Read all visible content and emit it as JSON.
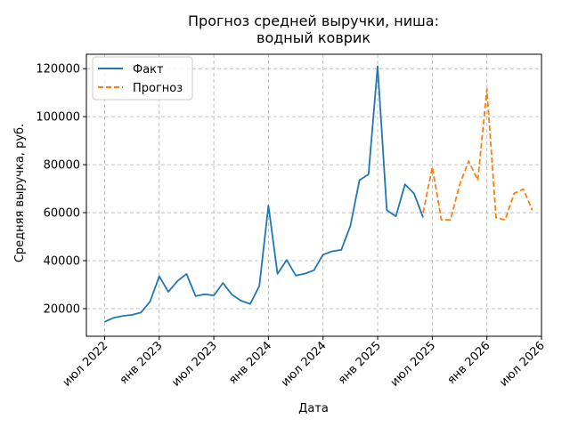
{
  "chart_data": {
    "type": "line",
    "title": "Прогноз средней выручки, ниша:\nводный коврик",
    "xlabel": "Дата",
    "ylabel": "Средняя выручка, руб.",
    "x_tick_labels": [
      "июл 2022",
      "янв 2023",
      "июл 2023",
      "янв 2024",
      "июл 2024",
      "янв 2025",
      "июл 2025",
      "янв 2026",
      "июл 2026"
    ],
    "x_tick_dates": [
      "2022-07",
      "2023-01",
      "2023-07",
      "2024-01",
      "2024-07",
      "2025-01",
      "2025-07",
      "2026-01",
      "2026-07"
    ],
    "xlim": [
      "2022-05",
      "2026-07"
    ],
    "y_ticks": [
      20000,
      40000,
      60000,
      80000,
      100000,
      120000
    ],
    "ylim": [
      8500,
      126000
    ],
    "grid": true,
    "legend_position": "top-left",
    "series": [
      {
        "name": "Факт",
        "style": "solid",
        "color": "#1f77b4",
        "x": [
          "2022-07",
          "2022-08",
          "2022-09",
          "2022-10",
          "2022-11",
          "2022-12",
          "2023-01",
          "2023-02",
          "2023-03",
          "2023-04",
          "2023-05",
          "2023-06",
          "2023-07",
          "2023-08",
          "2023-09",
          "2023-10",
          "2023-11",
          "2023-12",
          "2024-01",
          "2024-02",
          "2024-03",
          "2024-04",
          "2024-05",
          "2024-06",
          "2024-07",
          "2024-08",
          "2024-09",
          "2024-10",
          "2024-11",
          "2024-12",
          "2025-01",
          "2025-02",
          "2025-03",
          "2025-04",
          "2025-05",
          "2025-06"
        ],
        "values": [
          14500,
          16200,
          17000,
          17400,
          18400,
          23000,
          33500,
          27000,
          31500,
          34500,
          25200,
          26000,
          25500,
          30700,
          25800,
          23300,
          22000,
          29500,
          63000,
          34500,
          40300,
          33800,
          34600,
          36000,
          42500,
          43900,
          44500,
          54500,
          73500,
          76000,
          121000,
          61000,
          58500,
          71800,
          68000,
          58000
        ]
      },
      {
        "name": "Прогноз",
        "style": "dashed",
        "color": "#ff7f0e",
        "x": [
          "2025-06",
          "2025-07",
          "2025-08",
          "2025-09",
          "2025-10",
          "2025-11",
          "2025-12",
          "2026-01",
          "2026-02",
          "2026-03",
          "2026-04",
          "2026-05",
          "2026-06"
        ],
        "values": [
          60000,
          79000,
          57000,
          57000,
          71500,
          81500,
          73500,
          111500,
          58000,
          57000,
          68000,
          69800,
          61000
        ]
      }
    ]
  }
}
